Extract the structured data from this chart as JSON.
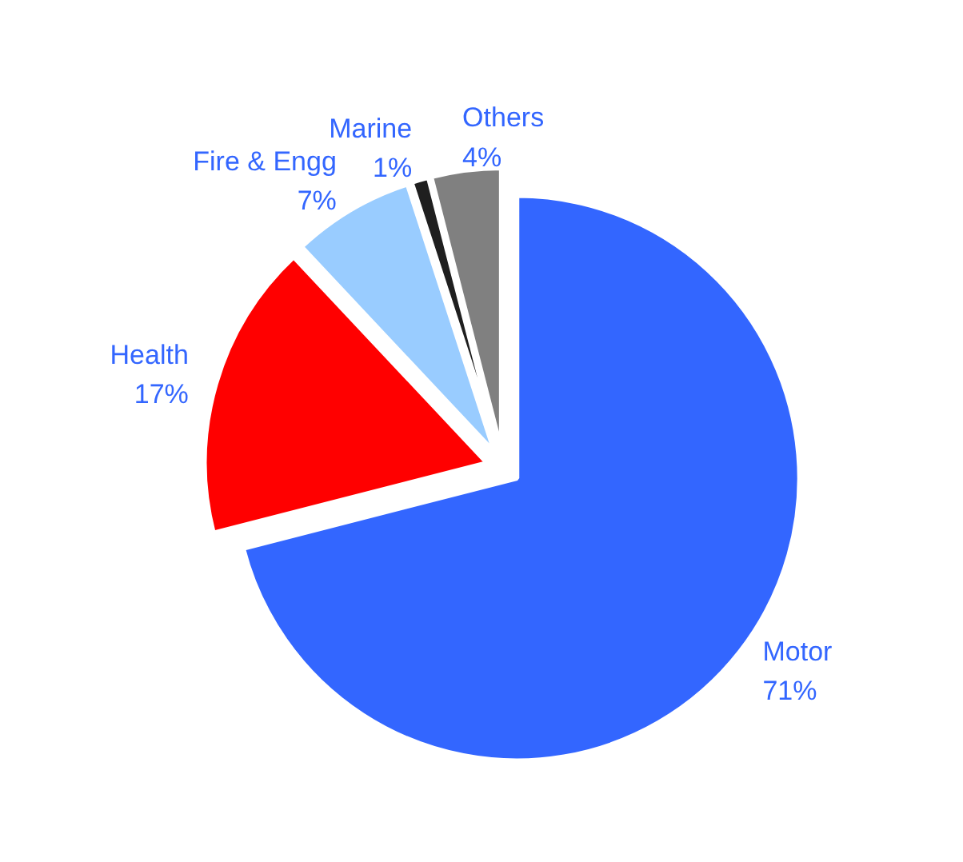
{
  "chart_data": {
    "type": "pie",
    "categories": [
      "Motor",
      "Health",
      "Fire & Engg",
      "Marine",
      "Others"
    ],
    "values": [
      71,
      17,
      7,
      1,
      4
    ],
    "colors": [
      "#3366ff",
      "#ff0000",
      "#99ccff",
      "#1f1f1f",
      "#808080"
    ],
    "value_labels": [
      "71%",
      "17%",
      "7%",
      "1%",
      "4%"
    ]
  }
}
